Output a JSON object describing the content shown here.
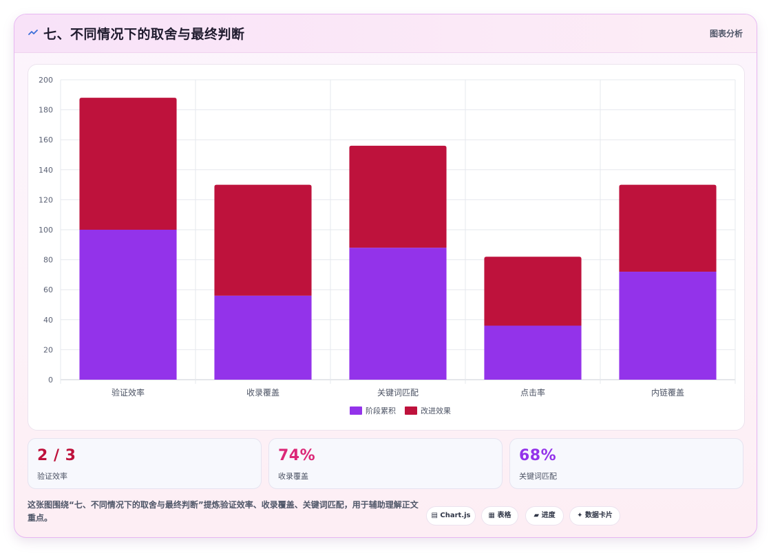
{
  "header": {
    "icon": "wave-icon",
    "title": "七、不同情况下的取舍与最终判断",
    "tag": "图表分析"
  },
  "colors": {
    "series_accumulate": "#9333ea",
    "series_improve": "#be123c",
    "stat1": "#be123c",
    "stat2": "#db2777",
    "stat3": "#9333ea"
  },
  "chart_data": {
    "type": "bar",
    "stacked": true,
    "categories": [
      "验证效率",
      "收录覆盖",
      "关键词匹配",
      "点击率",
      "内链覆盖"
    ],
    "series": [
      {
        "name": "阶段累积",
        "values": [
          100,
          56,
          88,
          36,
          72
        ],
        "color": "#9333ea"
      },
      {
        "name": "改进效果",
        "values": [
          88,
          74,
          68,
          46,
          58
        ],
        "color": "#be123c"
      }
    ],
    "ylim": [
      0,
      200
    ],
    "yticks": [
      0,
      20,
      40,
      60,
      80,
      100,
      120,
      140,
      160,
      180,
      200
    ],
    "grid": true,
    "legend": "bottom"
  },
  "stats": [
    {
      "value": "2 / 3",
      "label": "验证效率"
    },
    {
      "value": "74%",
      "label": "收录覆盖"
    },
    {
      "value": "68%",
      "label": "关键词匹配"
    }
  ],
  "footer": {
    "text": "这张图围绕“七、不同情况下的取舍与最终判断”提炼验证效率、收录覆盖、关键词匹配，用于辅助理解正文重点。",
    "chips": [
      {
        "icon": "chart-icon",
        "label": "Chart.js"
      },
      {
        "icon": "table-icon",
        "label": "表格"
      },
      {
        "icon": "progress-icon",
        "label": "进度"
      },
      {
        "icon": "sparkle-icon",
        "label": "数据卡片"
      }
    ]
  }
}
